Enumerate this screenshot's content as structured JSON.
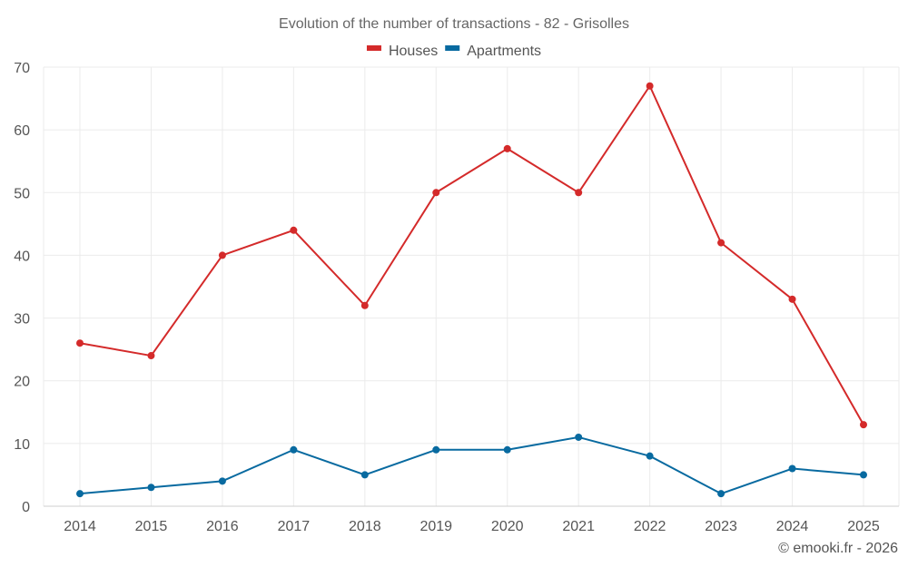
{
  "chart_data": {
    "type": "line",
    "title": "Evolution of the number of transactions - 82 - Grisolles",
    "categories": [
      "2014",
      "2015",
      "2016",
      "2017",
      "2018",
      "2019",
      "2020",
      "2021",
      "2022",
      "2023",
      "2024",
      "2025"
    ],
    "series": [
      {
        "name": "Houses",
        "color": "#d42a2a",
        "values": [
          26,
          24,
          40,
          44,
          32,
          50,
          57,
          50,
          67,
          42,
          33,
          13
        ]
      },
      {
        "name": "Apartments",
        "color": "#086aa0",
        "values": [
          2,
          3,
          4,
          9,
          5,
          9,
          9,
          11,
          8,
          2,
          6,
          5
        ]
      }
    ],
    "ylim": [
      0,
      70
    ],
    "yticks": [
      0,
      10,
      20,
      30,
      40,
      50,
      60,
      70
    ],
    "xlabel": "",
    "ylabel": "",
    "grid": true,
    "legend_position": "top-center"
  },
  "credit": "© emooki.fr - 2026"
}
